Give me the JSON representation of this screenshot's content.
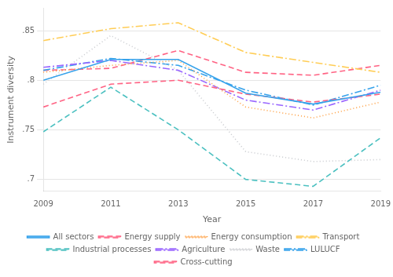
{
  "chart_data": {
    "type": "line",
    "x_label": "Year",
    "y_label": "Instrument diversity",
    "x": [
      2009,
      2011,
      2013,
      2015,
      2017,
      2019
    ],
    "series": [
      {
        "name": "All sectors",
        "line_style": "solid",
        "values": [
          0.8,
          0.821,
          0.821,
          0.787,
          0.776,
          0.788
        ]
      },
      {
        "name": "Energy supply",
        "line_style": "dashed",
        "values": [
          0.773,
          0.796,
          0.8,
          0.786,
          0.778,
          0.786
        ]
      },
      {
        "name": "Energy consumption",
        "line_style": "dotted",
        "values": [
          0.808,
          0.815,
          0.82,
          0.773,
          0.762,
          0.778
        ]
      },
      {
        "name": "Transport",
        "line_style": "dashdot",
        "values": [
          0.84,
          0.852,
          0.858,
          0.828,
          0.818,
          0.808
        ]
      },
      {
        "name": "Industrial processes",
        "line_style": "dashed",
        "values": [
          0.748,
          0.793,
          0.75,
          0.7,
          0.693,
          0.742
        ]
      },
      {
        "name": "Agriculture",
        "line_style": "dashdot",
        "values": [
          0.813,
          0.82,
          0.81,
          0.78,
          0.77,
          0.79
        ]
      },
      {
        "name": "Waste",
        "line_style": "dotted",
        "values": [
          0.796,
          0.845,
          0.81,
          0.728,
          0.718,
          0.72
        ]
      },
      {
        "name": "LULUCF",
        "line_style": "dashdot",
        "values": [
          0.81,
          0.822,
          0.815,
          0.79,
          0.775,
          0.795
        ]
      },
      {
        "name": "Cross-cutting",
        "line_style": "dashed",
        "values": [
          0.81,
          0.812,
          0.83,
          0.808,
          0.805,
          0.815
        ]
      }
    ],
    "xlim": [
      2009,
      2019
    ],
    "xticks": [
      2009,
      2011,
      2013,
      2015,
      2017,
      2019
    ],
    "ylim": [
      0.688,
      0.873
    ],
    "yticks": [
      {
        "value": 0.7,
        "label": ".7"
      },
      {
        "value": 0.75,
        "label": ".75"
      },
      {
        "value": 0.8,
        "label": ".8"
      },
      {
        "value": 0.85,
        "label": ".85"
      }
    ],
    "grid": true,
    "legend": "bottom"
  }
}
